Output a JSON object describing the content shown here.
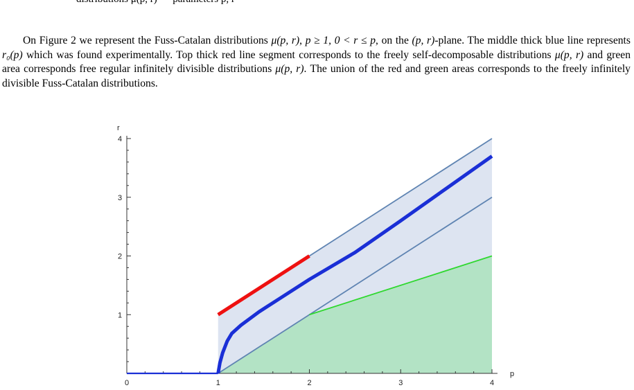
{
  "top_fragment": "distributions μ(p, r) — parameters p, r",
  "paragraph": {
    "s1_prefix": "On Figure 2 we represent the Fuss-Catalan distributions ",
    "s1_expr1": "μ(p, r)",
    "s1_mid1": ", ",
    "s1_expr2": "p ≥ 1, 0 < r ≤ p",
    "s1_mid2": ", on the ",
    "s1_expr3": "(p, r)",
    "s1_end": "-plane. The middle thick blue line represents ",
    "s2_expr": "r₀(p)",
    "s2_mid": " which was found experimentally. Top thick red line segment corresponds to the freely self-decomposable distributions ",
    "s2_expr2": "μ(p, r)",
    "s2_mid2": " and green area corresponds free regular infinitely divisible distributions ",
    "s2_expr3": "μ(p, r)",
    "s2_end": ". The union of the red and green areas corresponds to the freely infinitely divisible Fuss-Catalan distributions."
  },
  "chart_data": {
    "type": "area",
    "xlabel": "p",
    "ylabel": "r",
    "xlim": [
      0,
      4
    ],
    "ylim": [
      0,
      4
    ],
    "x_ticks": [
      "0",
      "1",
      "2",
      "3",
      "4"
    ],
    "y_ticks": [
      "1",
      "2",
      "3",
      "4"
    ],
    "regions": [
      {
        "color": "#dde4f1",
        "points": [
          [
            1,
            0
          ],
          [
            1,
            1
          ],
          [
            4,
            4
          ],
          [
            4,
            0
          ]
        ]
      },
      {
        "color": "#b3e3c5",
        "points": [
          [
            1,
            0
          ],
          [
            2,
            1
          ],
          [
            4,
            2
          ],
          [
            4,
            0
          ]
        ]
      }
    ],
    "lines": [
      {
        "color": "#5f84b2",
        "width": 1.8,
        "points": [
          [
            1,
            1
          ],
          [
            4,
            4
          ]
        ]
      },
      {
        "color": "#5f84b2",
        "width": 1.8,
        "points": [
          [
            1,
            0
          ],
          [
            4,
            3
          ]
        ]
      },
      {
        "color": "#2fd82f",
        "width": 1.8,
        "points": [
          [
            2,
            1
          ],
          [
            4,
            2
          ]
        ]
      },
      {
        "color": "#ee1111",
        "width": 5,
        "points": [
          [
            1,
            1
          ],
          [
            2,
            2
          ]
        ]
      },
      {
        "color": "#1a2fd6",
        "width": 5,
        "points": [
          [
            1,
            0
          ],
          [
            1.02,
            0.18
          ],
          [
            1.05,
            0.35
          ],
          [
            1.1,
            0.55
          ],
          [
            1.15,
            0.68
          ],
          [
            1.25,
            0.82
          ],
          [
            1.45,
            1.05
          ],
          [
            1.7,
            1.3
          ],
          [
            2,
            1.6
          ],
          [
            2.5,
            2.06
          ],
          [
            3,
            2.6
          ],
          [
            3.5,
            3.15
          ],
          [
            4,
            3.7
          ]
        ]
      },
      {
        "color": "#1a2fd6",
        "width": 2.2,
        "points": [
          [
            0,
            0
          ],
          [
            1,
            0
          ]
        ]
      }
    ]
  }
}
